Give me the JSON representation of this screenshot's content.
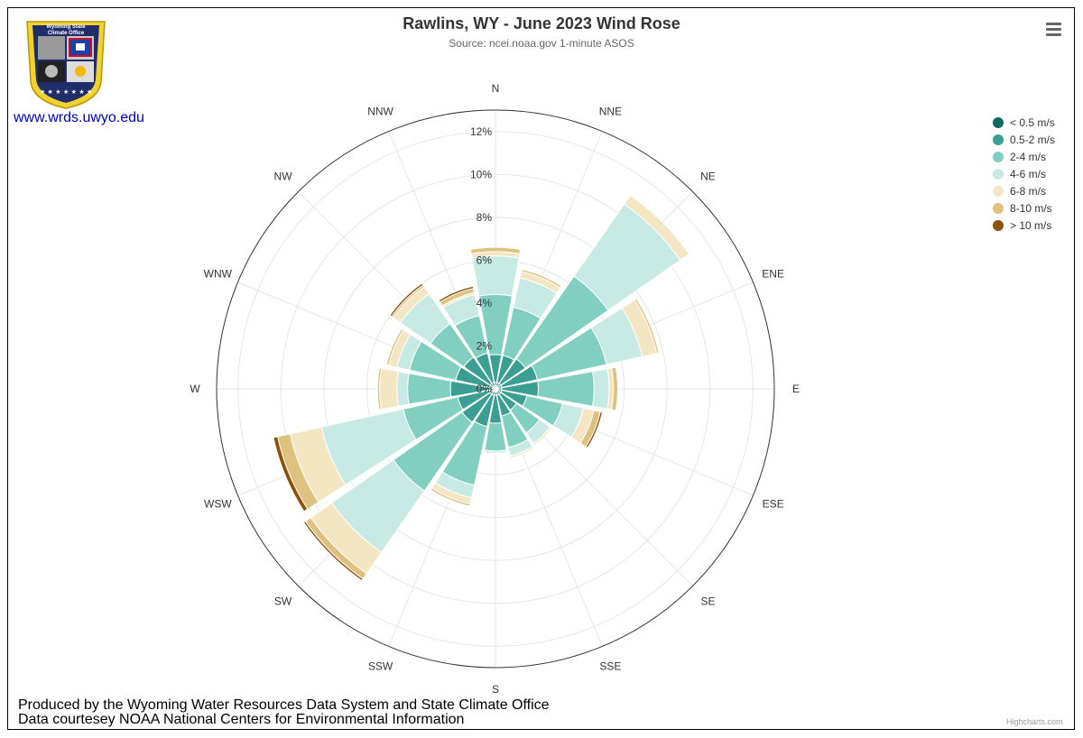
{
  "chart_data": {
    "type": "windrose",
    "title": "Rawlins, WY - June 2023 Wind Rose",
    "subtitle": "Source: ncei.noaa.gov 1-minute ASOS",
    "directions": [
      "N",
      "NNE",
      "NE",
      "ENE",
      "E",
      "ESE",
      "SE",
      "SSE",
      "S",
      "SSW",
      "SW",
      "WSW",
      "W",
      "WNW",
      "NW",
      "NNW"
    ],
    "radial_axis": {
      "min": 0,
      "max": 13,
      "ticks": [
        0,
        2,
        4,
        6,
        8,
        10,
        12
      ],
      "tick_labels": [
        "0%",
        "2%",
        "4%",
        "6%",
        "8%",
        "10%",
        "12%"
      ]
    },
    "stacking": "normal",
    "series": [
      {
        "name": "< 0.5 m/s",
        "color": "#0c6b5e",
        "values": [
          0.3,
          0.3,
          0.3,
          0.3,
          0.3,
          0.3,
          0.3,
          0.3,
          0.3,
          0.3,
          0.3,
          0.3,
          0.3,
          0.3,
          0.3,
          0.3
        ]
      },
      {
        "name": "0.5-2 m/s",
        "color": "#3a9e93",
        "values": [
          1.3,
          1.3,
          1.4,
          1.7,
          1.7,
          1.2,
          0.9,
          1.0,
          1.3,
          1.5,
          1.6,
          1.5,
          1.8,
          1.6,
          1.5,
          1.4
        ]
      },
      {
        "name": "2-4 m/s",
        "color": "#80cfc1",
        "values": [
          2.8,
          2.3,
          4.7,
          3.3,
          2.6,
          1.7,
          1.3,
          1.5,
          1.3,
          2.8,
          3.9,
          2.6,
          2.0,
          2.2,
          1.9,
          1.8
        ]
      },
      {
        "name": "4-6 m/s",
        "color": "#c7eae4",
        "values": [
          1.8,
          1.4,
          4.1,
          1.7,
          0.7,
          1.0,
          0.6,
          0.4,
          0.1,
          0.6,
          3.5,
          3.9,
          0.5,
          0.6,
          1.7,
          1.0
        ]
      },
      {
        "name": "6-8 m/s",
        "color": "#f5e6c3",
        "values": [
          0.2,
          0.3,
          0.5,
          0.7,
          0.2,
          0.5,
          0.1,
          0.1,
          0.0,
          0.3,
          1.2,
          1.5,
          0.8,
          0.4,
          0.4,
          0.1
        ]
      },
      {
        "name": "8-10 m/s",
        "color": "#dfc27d",
        "values": [
          0.2,
          0.1,
          0.0,
          0.1,
          0.2,
          0.3,
          0.0,
          0.0,
          0.0,
          0.1,
          0.3,
          0.6,
          0.1,
          0.1,
          0.1,
          0.2
        ]
      },
      {
        "name": "> 10 m/s",
        "color": "#8c510a",
        "values": [
          0.0,
          0.0,
          0.0,
          0.0,
          0.0,
          0.1,
          0.0,
          0.0,
          0.0,
          0.0,
          0.1,
          0.2,
          0.0,
          0.0,
          0.1,
          0.1
        ]
      }
    ],
    "legend_position": "top-right",
    "grid": true
  },
  "branding": {
    "link_text": "www.wrds.uwyo.edu",
    "logo_text_line1": "Wyoming State",
    "logo_text_line2": "Climate Office",
    "link_color": "#0000cc"
  },
  "footer": {
    "line1": "Produced by the Wyoming Water Resources Data System and State Climate Office",
    "line2": "Data courtesey NOAA National Centers for Environmental Information"
  },
  "credits": "Highcharts.com",
  "menu": {
    "icon": "hamburger-menu-icon"
  }
}
